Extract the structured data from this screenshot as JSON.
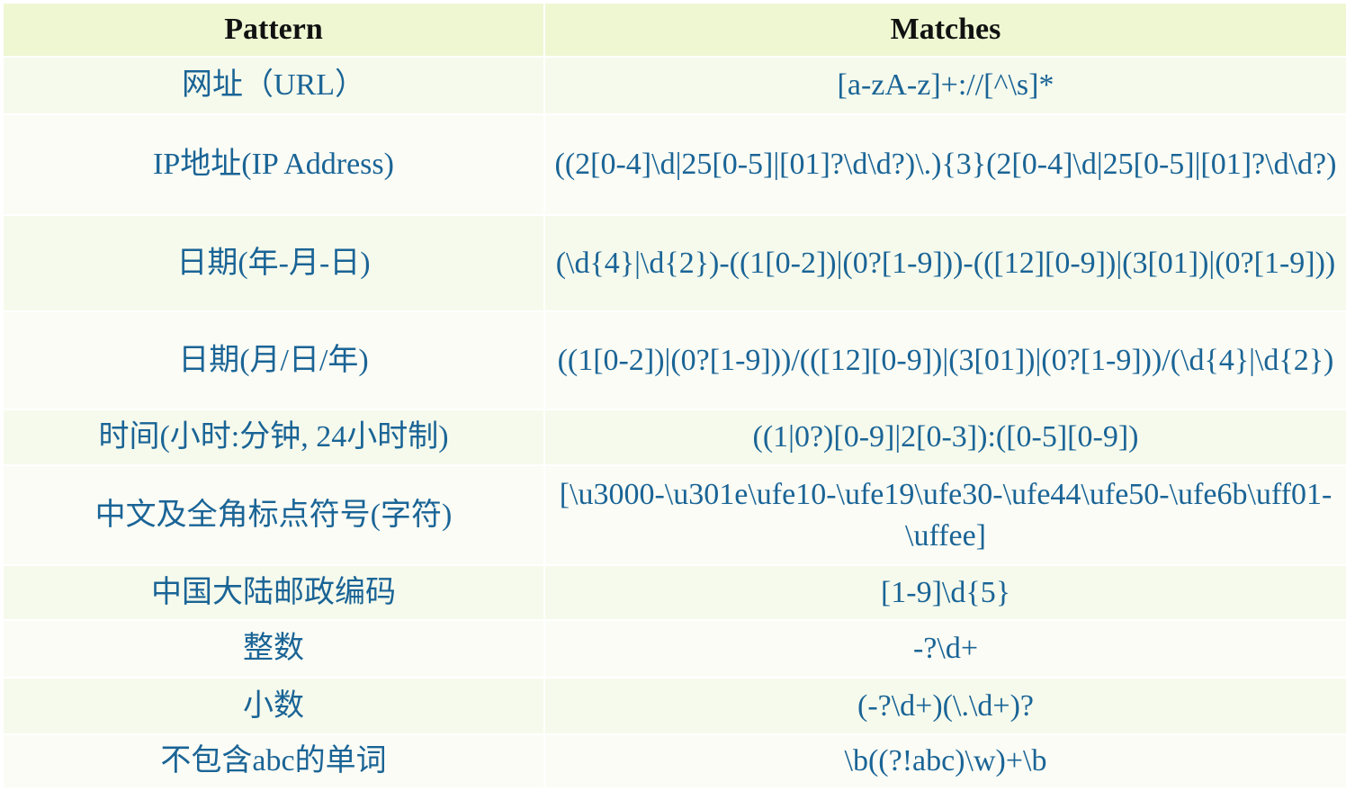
{
  "table": {
    "headers": [
      "Pattern",
      "Matches"
    ],
    "rows": [
      {
        "pattern": "网址（URL）",
        "matches": "[a-zA-z]+://[^\\s]*"
      },
      {
        "pattern": "IP地址(IP Address)",
        "matches": "((2[0-4]\\d|25[0-5]|[01]?\\d\\d?)\\.){3}(2[0-4]\\d|25[0-5]|[01]?\\d\\d?)"
      },
      {
        "pattern": "日期(年-月-日)",
        "matches": "(\\d{4}|\\d{2})-((1[0-2])|(0?[1-9]))-(([12][0-9])|(3[01])|(0?[1-9]))"
      },
      {
        "pattern": "日期(月/日/年)",
        "matches": "((1[0-2])|(0?[1-9]))/(([12][0-9])|(3[01])|(0?[1-9]))/(\\d{4}|\\d{2})"
      },
      {
        "pattern": "时间(小时:分钟, 24小时制)",
        "matches": "((1|0?)[0-9]|2[0-3]):([0-5][0-9])"
      },
      {
        "pattern": "中文及全角标点符号(字符)",
        "matches": "[\\u3000-\\u301e\\ufe10-\\ufe19\\ufe30-\\ufe44\\ufe50-\\ufe6b\\uff01-\\uffee]"
      },
      {
        "pattern": "中国大陆邮政编码",
        "matches": "[1-9]\\d{5}"
      },
      {
        "pattern": "整数",
        "matches": "-?\\d+"
      },
      {
        "pattern": "小数",
        "matches": "(-?\\d+)(\\.\\d+)?"
      },
      {
        "pattern": "不包含abc的单词",
        "matches": "\\b((?!abc)\\w)+\\b"
      }
    ]
  },
  "colors": {
    "header_bg": "#eef7d2",
    "row_odd": "#f6faec",
    "row_even": "#fbfcf5",
    "text": "#1a6496"
  }
}
